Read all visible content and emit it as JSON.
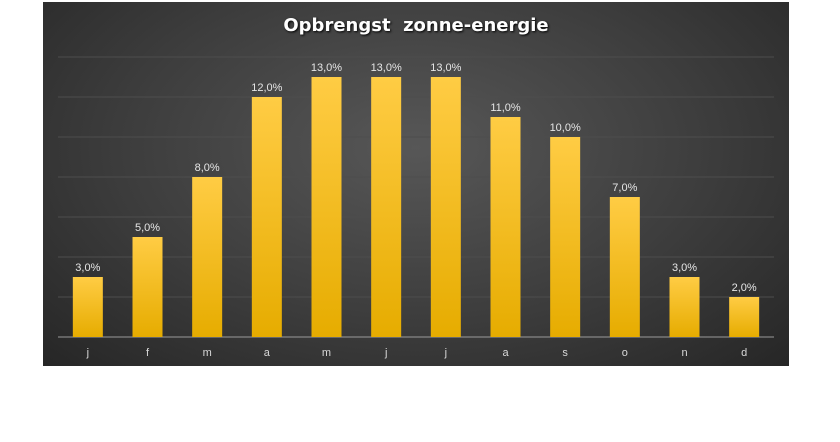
{
  "chart_data": {
    "type": "bar",
    "title": "Opbrengst  zonne-energie",
    "categories": [
      "j",
      "f",
      "m",
      "a",
      "m",
      "j",
      "j",
      "a",
      "s",
      "o",
      "n",
      "d"
    ],
    "series": [
      {
        "values": [
          3,
          5,
          8,
          12,
          13,
          13,
          13,
          11,
          10,
          7,
          3,
          2
        ],
        "labels": [
          "3,0%",
          "5,0%",
          "8,0%",
          "12,0%",
          "13,0%",
          "13,0%",
          "13,0%",
          "11,0%",
          "10,0%",
          "7,0%",
          "3,0%",
          "2,0%"
        ]
      }
    ],
    "ylim": [
      0,
      14
    ],
    "grid": true,
    "legend": "none",
    "colors": {
      "bar_top": "#ffcc44",
      "bar_bottom": "#e6ac00",
      "background": "#404040"
    }
  }
}
